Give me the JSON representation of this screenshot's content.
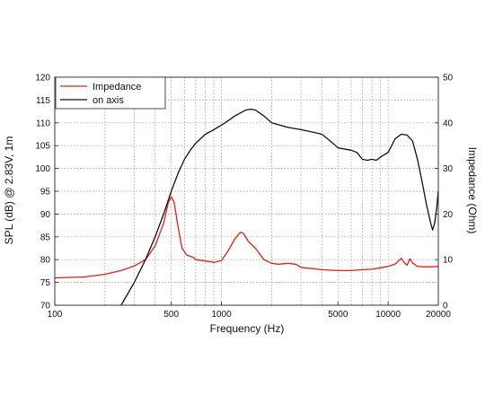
{
  "chart_data": {
    "type": "line",
    "title": "",
    "xlabel": "Frequency (Hz)",
    "ylabel": "SPL (dB) @ 2.83V, 1m",
    "y2label": "Impedance (Ohm)",
    "x_scale": "log",
    "xlim": [
      100,
      20000
    ],
    "ylim": [
      70,
      120
    ],
    "y2lim": [
      0,
      50
    ],
    "x_ticks": [
      {
        "value": 100,
        "label": "100"
      },
      {
        "value": 500,
        "label": "500"
      },
      {
        "value": 1000,
        "label": "1000"
      },
      {
        "value": 5000,
        "label": "5000"
      },
      {
        "value": 10000,
        "label": "10000"
      },
      {
        "value": 20000,
        "label": "20000"
      }
    ],
    "y_ticks": [
      "70",
      "75",
      "80",
      "85",
      "90",
      "95",
      "100",
      "105",
      "110",
      "115",
      "120"
    ],
    "y2_ticks": [
      "0",
      "10",
      "20",
      "30",
      "40",
      "50"
    ],
    "grid": true,
    "legend_position": "top-left",
    "series": [
      {
        "name": "Impedance",
        "axis": "right",
        "color": "#e0201a",
        "points": [
          [
            100,
            6
          ],
          [
            150,
            6.2
          ],
          [
            200,
            6.8
          ],
          [
            250,
            7.6
          ],
          [
            300,
            8.6
          ],
          [
            350,
            10
          ],
          [
            400,
            13
          ],
          [
            450,
            18
          ],
          [
            480,
            22.5
          ],
          [
            500,
            23.8
          ],
          [
            520,
            22.5
          ],
          [
            550,
            17
          ],
          [
            580,
            12.5
          ],
          [
            620,
            11
          ],
          [
            680,
            10.5
          ],
          [
            700,
            10
          ],
          [
            800,
            9.7
          ],
          [
            900,
            9.4
          ],
          [
            1000,
            9.8
          ],
          [
            1100,
            12
          ],
          [
            1200,
            14.5
          ],
          [
            1300,
            16
          ],
          [
            1350,
            15.8
          ],
          [
            1450,
            14
          ],
          [
            1600,
            12.5
          ],
          [
            1800,
            10
          ],
          [
            2000,
            9.2
          ],
          [
            2200,
            9
          ],
          [
            2500,
            9.2
          ],
          [
            2800,
            9
          ],
          [
            3000,
            8.3
          ],
          [
            4000,
            7.8
          ],
          [
            5000,
            7.6
          ],
          [
            6000,
            7.6
          ],
          [
            7000,
            7.8
          ],
          [
            8000,
            7.9
          ],
          [
            9000,
            8.2
          ],
          [
            10000,
            8.5
          ],
          [
            11000,
            9
          ],
          [
            12000,
            10.3
          ],
          [
            12500,
            9.3
          ],
          [
            13000,
            8.8
          ],
          [
            13500,
            10.2
          ],
          [
            14000,
            9.3
          ],
          [
            15000,
            8.5
          ],
          [
            17000,
            8.4
          ],
          [
            20000,
            8.5
          ]
        ]
      },
      {
        "name": "on axis",
        "axis": "left",
        "color": "#111111",
        "points": [
          [
            250,
            70
          ],
          [
            300,
            75
          ],
          [
            350,
            80
          ],
          [
            400,
            85
          ],
          [
            450,
            90
          ],
          [
            500,
            95
          ],
          [
            550,
            99
          ],
          [
            600,
            102
          ],
          [
            650,
            104
          ],
          [
            700,
            105.5
          ],
          [
            800,
            107.5
          ],
          [
            900,
            108.5
          ],
          [
            1000,
            109.5
          ],
          [
            1100,
            110.5
          ],
          [
            1200,
            111.5
          ],
          [
            1400,
            112.8
          ],
          [
            1500,
            113
          ],
          [
            1600,
            112.8
          ],
          [
            1800,
            111.5
          ],
          [
            2000,
            110
          ],
          [
            2500,
            109
          ],
          [
            3000,
            108.5
          ],
          [
            3500,
            108
          ],
          [
            4000,
            107.5
          ],
          [
            4500,
            106
          ],
          [
            5000,
            104.5
          ],
          [
            6000,
            104
          ],
          [
            6500,
            103.5
          ],
          [
            7000,
            102
          ],
          [
            7500,
            101.8
          ],
          [
            8000,
            102
          ],
          [
            8500,
            101.8
          ],
          [
            9000,
            102.5
          ],
          [
            10000,
            103.5
          ],
          [
            10500,
            105
          ],
          [
            11000,
            106.5
          ],
          [
            12000,
            107.5
          ],
          [
            13000,
            107.3
          ],
          [
            14000,
            106
          ],
          [
            15000,
            102
          ],
          [
            16000,
            97
          ],
          [
            17000,
            92
          ],
          [
            18000,
            88
          ],
          [
            18500,
            86.5
          ],
          [
            19000,
            88
          ],
          [
            19500,
            91
          ],
          [
            20000,
            95
          ]
        ]
      }
    ]
  }
}
